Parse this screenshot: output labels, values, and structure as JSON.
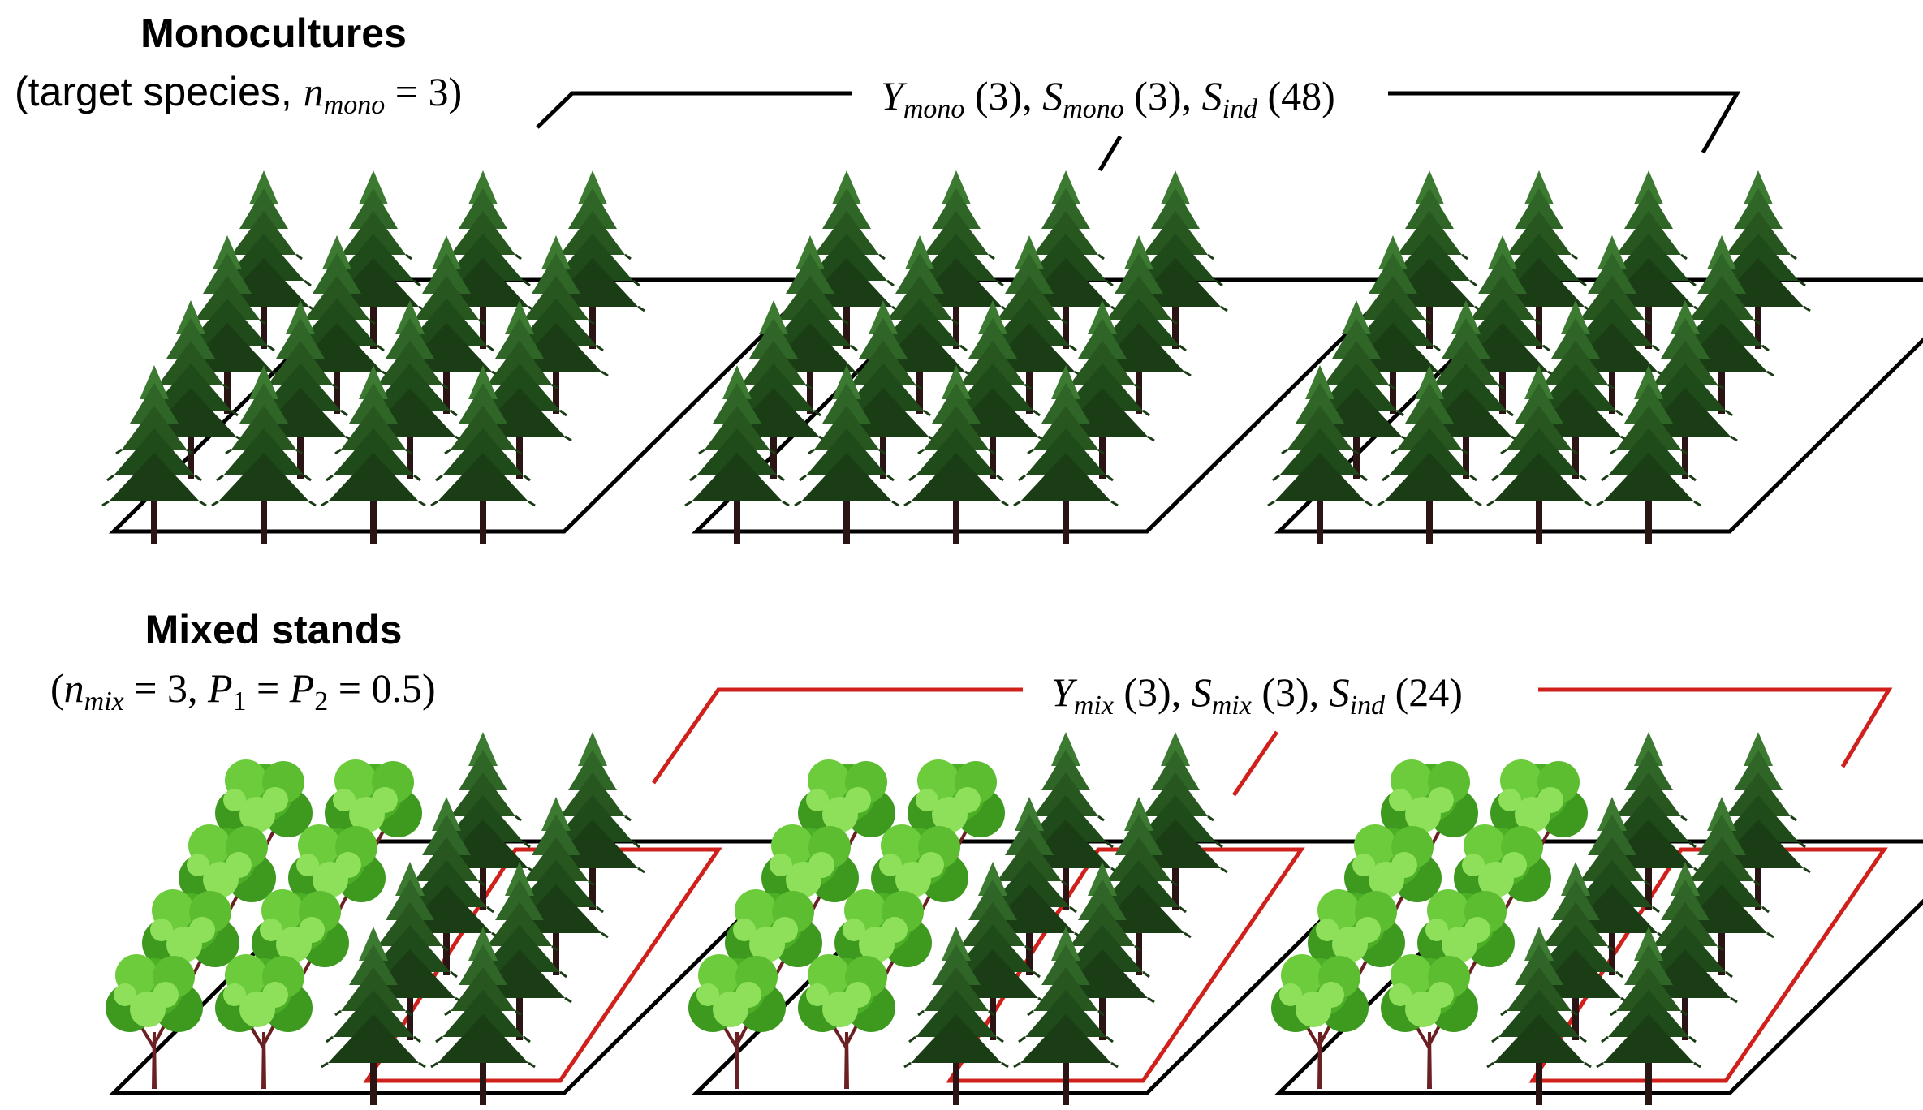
{
  "colors": {
    "conifer_dark": "#1b3d16",
    "conifer_light": "#3c7a31",
    "broadleaf_dark": "#3d9a1f",
    "broadleaf_light": "#8ee05a",
    "trunk": "#2a1414",
    "broadleaf_trunk": "#6a1f22",
    "plot_outline": "#000000",
    "mixed_bracket": "#d0201b"
  },
  "icons": [
    "conifer-tree-icon",
    "broadleaf-tree-icon"
  ],
  "monocultures": {
    "title": "Monocultures",
    "subtitle_pre": "(target species, ",
    "subtitle_var": "n",
    "subtitle_sub": "mono",
    "subtitle_post": " = 3)",
    "bracket_label": {
      "y_var": "Y",
      "y_sub": "mono",
      "y_count": " (3), ",
      "s_var": "S",
      "s_sub": "mono",
      "s_count": " (3), ",
      "i_var": "S",
      "i_sub": "ind",
      "i_count": " (48)"
    },
    "plots": 3,
    "trees_per_plot": 16
  },
  "mixed": {
    "title": "Mixed stands",
    "subtitle_open": "(",
    "n_var": "n",
    "n_sub": "mix",
    "n_eq": " = 3, ",
    "p1_var": "P",
    "p1_sub": "1",
    "p_eq": " = ",
    "p2_var": "P",
    "p2_sub": "2",
    "p_val": " = 0.5)",
    "bracket_label": {
      "y_var": "Y",
      "y_sub": "mix",
      "y_count": " (3), ",
      "s_var": "S",
      "s_sub": "mix",
      "s_count": " (3), ",
      "i_var": "S",
      "i_sub": "ind",
      "i_count": " (24)"
    },
    "plots": 3,
    "conifers_per_plot": 8,
    "broadleaves_per_plot": 8
  }
}
